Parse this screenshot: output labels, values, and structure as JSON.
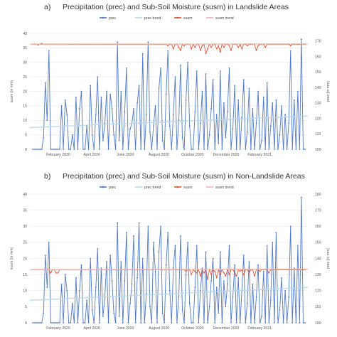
{
  "chart_data": [
    {
      "type": "line",
      "panel_label": "a)",
      "title": "Precipitation (prec) and Sub-Soil Moisture (susm) in Landslide Areas",
      "y_left_label": "susm (in mm)",
      "y_right_label": "prec (in mm)",
      "y_left_ticks": [
        "0",
        "5",
        "10",
        "15",
        "20",
        "25",
        "30",
        "35",
        "40"
      ],
      "y_right_ticks": [
        "100",
        "110",
        "120",
        "130",
        "140",
        "150",
        "160",
        "170"
      ],
      "y_left_lim": [
        0,
        40
      ],
      "y_right_lim": [
        100,
        175
      ],
      "x_ticks": [
        "February 2020",
        "April 2020",
        "June 2020",
        "August 2020",
        "October 2020",
        "December 2020",
        "February 2021"
      ],
      "legend": [
        "prec",
        "prec trend",
        "susm",
        "susm trend"
      ],
      "legend_placement": "top",
      "grid": true,
      "series": [
        {
          "name": "prec",
          "axis": "left",
          "color": "#4f77c9",
          "values": [
            0,
            0,
            0,
            0,
            0,
            0,
            4,
            23,
            10,
            34,
            0,
            0,
            0,
            0,
            0,
            0,
            15,
            0,
            17,
            12,
            0,
            0,
            5,
            0,
            18,
            0,
            14,
            20,
            0,
            0,
            8,
            0,
            22,
            5,
            0,
            12,
            25,
            0,
            18,
            3,
            9,
            20,
            0,
            19,
            14,
            5,
            0,
            37,
            3,
            20,
            0,
            13,
            28,
            0,
            7,
            9,
            14,
            0,
            16,
            22,
            0,
            33,
            0,
            12,
            37,
            6,
            0,
            8,
            15,
            0,
            21,
            28,
            3,
            0,
            19,
            34,
            8,
            0,
            12,
            25,
            0,
            10,
            29,
            4,
            0,
            17,
            30,
            8,
            0,
            0,
            13,
            27,
            0,
            9,
            20,
            0,
            26,
            0,
            5,
            14,
            24,
            0,
            12,
            2,
            27,
            0,
            16,
            4,
            13,
            28,
            0,
            7,
            22,
            0,
            17,
            0,
            11,
            24,
            0,
            6,
            21,
            0,
            14,
            0,
            9,
            20,
            0,
            3,
            18,
            0,
            23,
            0,
            8,
            16,
            0,
            17,
            0,
            5,
            15,
            0,
            12,
            0,
            9,
            34,
            0,
            17,
            0,
            20,
            0,
            38,
            0,
            0
          ]
        },
        {
          "name": "prec trend",
          "axis": "left",
          "color": "#b9d9e6",
          "values": [
            7.5,
            11.5
          ]
        },
        {
          "name": "susm",
          "axis": "right",
          "color": "#e0573b",
          "values": [
            168,
            168,
            168,
            167.5,
            168,
            168.5,
            168,
            168,
            168,
            168,
            168,
            168,
            168,
            168,
            168,
            168,
            168,
            168,
            168,
            168,
            168,
            168,
            168,
            168,
            168,
            168,
            168,
            168,
            168,
            168,
            168,
            168,
            168,
            168,
            168,
            168,
            168,
            168,
            168,
            168,
            168,
            168,
            168,
            168,
            168,
            168,
            168,
            168,
            168,
            168,
            168,
            168,
            168,
            168,
            168,
            168,
            168,
            168,
            168,
            168,
            168,
            168,
            168,
            168,
            168,
            168,
            168,
            168,
            168,
            168,
            168,
            168,
            168,
            168,
            168,
            167,
            168,
            168,
            165,
            168,
            168,
            166,
            164,
            168,
            167,
            168,
            168,
            168,
            165,
            168,
            166,
            168,
            168,
            164,
            167,
            168,
            162,
            165,
            168,
            166,
            168,
            168,
            165,
            167,
            163,
            168,
            166,
            168,
            168,
            167,
            164,
            168,
            168,
            168,
            166,
            168,
            165,
            168,
            168,
            167,
            168,
            168,
            168,
            168,
            164,
            167,
            168,
            168,
            168,
            166,
            168,
            168,
            168,
            168,
            168,
            168,
            168,
            168,
            168,
            168,
            168,
            168,
            168,
            167,
            168,
            168,
            168,
            168,
            168,
            168,
            168,
            168
          ]
        },
        {
          "name": "susm trend",
          "axis": "right",
          "color": "#f2b5a6",
          "values": [
            168,
            168.2
          ]
        }
      ]
    },
    {
      "type": "line",
      "panel_label": "b)",
      "title": "Precipitation (prec) and Sub-Soil Moisture (susm) in Non-Landslide Areas",
      "y_left_label": "susm (in mm)",
      "y_right_label": "prec (in mm)",
      "y_left_ticks": [
        "0",
        "5",
        "10",
        "15",
        "20",
        "25",
        "30",
        "35",
        "40"
      ],
      "y_right_ticks": [
        "100",
        "110",
        "120",
        "130",
        "140",
        "150",
        "160",
        "170",
        "180"
      ],
      "y_left_lim": [
        0,
        40
      ],
      "y_right_lim": [
        100,
        180
      ],
      "x_ticks": [
        "February 2020",
        "April 2020",
        "June 2020",
        "August 2020",
        "October 2020",
        "December 2020",
        "February 2021"
      ],
      "legend": [
        "prec",
        "prec trend",
        "susm",
        "susm trend"
      ],
      "legend_placement": "top",
      "grid": true,
      "series": [
        {
          "name": "prec",
          "axis": "left",
          "color": "#4f77c9",
          "values": [
            0,
            0,
            0,
            0,
            0,
            0,
            3,
            21,
            11,
            25,
            0,
            0,
            0,
            0,
            0,
            0,
            12,
            0,
            15,
            10,
            0,
            0,
            6,
            0,
            14,
            0,
            10,
            18,
            0,
            0,
            7,
            0,
            20,
            4,
            0,
            11,
            23,
            0,
            17,
            2,
            8,
            19,
            0,
            21,
            13,
            3,
            0,
            31,
            2,
            19,
            0,
            13,
            28,
            0,
            6,
            12,
            27,
            0,
            14,
            31,
            0,
            20,
            0,
            9,
            30,
            5,
            0,
            25,
            16,
            0,
            22,
            30,
            3,
            0,
            18,
            28,
            10,
            0,
            17,
            24,
            0,
            8,
            27,
            4,
            0,
            15,
            25,
            6,
            0,
            0,
            11,
            24,
            0,
            10,
            17,
            0,
            22,
            0,
            5,
            13,
            20,
            0,
            11,
            3,
            22,
            0,
            13,
            5,
            12,
            24,
            0,
            8,
            18,
            0,
            14,
            0,
            10,
            21,
            0,
            6,
            19,
            0,
            12,
            0,
            8,
            18,
            0,
            2,
            16,
            0,
            24,
            0,
            7,
            25,
            0,
            28,
            0,
            4,
            14,
            0,
            10,
            0,
            8,
            30,
            0,
            17,
            0,
            24,
            0,
            39,
            0,
            0
          ]
        },
        {
          "name": "prec trend",
          "axis": "left",
          "color": "#b9d9e6",
          "values": [
            7,
            11
          ]
        },
        {
          "name": "susm",
          "axis": "right",
          "color": "#e0573b",
          "values": [
            133,
            133,
            133,
            133,
            133,
            133,
            133,
            133,
            133,
            133,
            131,
            133,
            133,
            131,
            131,
            133,
            133,
            133,
            133,
            133,
            133,
            133,
            133,
            133,
            133,
            133,
            133,
            133,
            133,
            133,
            133,
            133,
            133,
            133,
            133,
            133,
            133,
            133,
            133,
            133,
            133,
            133,
            133,
            133,
            133,
            133,
            133,
            133,
            133,
            133,
            133,
            133,
            133,
            133,
            133,
            133,
            133,
            133,
            133,
            133,
            133,
            133,
            133,
            133,
            133,
            133,
            133,
            133,
            133,
            133,
            133,
            133,
            133,
            133,
            133,
            133,
            133,
            133,
            133,
            133,
            133,
            133,
            133,
            133,
            133,
            132,
            133,
            133,
            130,
            133,
            132,
            131,
            133,
            129,
            133,
            131,
            133,
            127,
            133,
            130,
            133,
            132,
            128,
            133,
            130,
            133,
            131,
            129,
            133,
            130,
            133,
            133,
            131,
            129,
            133,
            132,
            133,
            130,
            133,
            133,
            131,
            133,
            133,
            129,
            133,
            133,
            132,
            133,
            133,
            133,
            133,
            131,
            133,
            133,
            133,
            133,
            133,
            133,
            133,
            133,
            133,
            133,
            133,
            133,
            133,
            133,
            133,
            133,
            133,
            133,
            133,
            133
          ]
        },
        {
          "name": "susm trend",
          "axis": "right",
          "color": "#f2b5a6",
          "values": [
            133,
            133.3
          ]
        }
      ]
    }
  ]
}
